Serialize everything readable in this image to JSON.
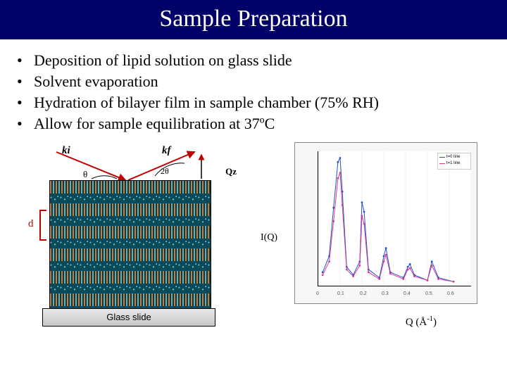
{
  "title": "Sample Preparation",
  "title_bg": "#010168",
  "title_color": "#ffffff",
  "bullets": [
    "Deposition of lipid solution on glass slide",
    "Solvent evaporation",
    "Hydration of bilayer film in sample chamber (75% RH)",
    "Allow for sample equilibration at 37ºC"
  ],
  "left_diagram": {
    "ki": "ki",
    "kf": "kf",
    "qz": "Qz",
    "theta": "θ",
    "twotheta": "2θ",
    "d_label": "d",
    "glass_label": "Glass slide",
    "layer_color_head": "#d97a24",
    "layer_color_tail": "#0b4a5a",
    "bracket_color": "#c00000",
    "arrow_color_in": "#c00000",
    "arrow_color_out": "#c00000",
    "n_bilayers": 6
  },
  "axis_labels": {
    "y": "I(Q)",
    "x_html": "Q (Å<sup>-1</sup>)"
  },
  "chart": {
    "type": "line",
    "background_color": "#f7f7f7",
    "plot_bg": "#ffffff",
    "grid_color": "#e0e0e0",
    "xlim": [
      0.0,
      0.7
    ],
    "ylim": [
      0,
      100
    ],
    "xticks": [
      0.0,
      0.1,
      0.2,
      0.3,
      0.4,
      0.5,
      0.6,
      0.7
    ],
    "series": [
      {
        "name": "t=0",
        "color": "#1f4fd6",
        "marker": "dot",
        "x": [
          0.02,
          0.05,
          0.07,
          0.09,
          0.1,
          0.11,
          0.13,
          0.16,
          0.19,
          0.2,
          0.21,
          0.23,
          0.28,
          0.3,
          0.31,
          0.33,
          0.39,
          0.41,
          0.42,
          0.44,
          0.5,
          0.52,
          0.55,
          0.62
        ],
        "y": [
          10,
          22,
          58,
          92,
          95,
          70,
          14,
          8,
          18,
          62,
          55,
          12,
          6,
          22,
          28,
          10,
          6,
          14,
          16,
          8,
          4,
          18,
          6,
          3
        ]
      },
      {
        "name": "t=1",
        "color": "#d63a8a",
        "marker": "dot",
        "x": [
          0.02,
          0.05,
          0.07,
          0.09,
          0.1,
          0.11,
          0.13,
          0.16,
          0.19,
          0.2,
          0.21,
          0.23,
          0.28,
          0.3,
          0.31,
          0.33,
          0.39,
          0.41,
          0.42,
          0.44,
          0.5,
          0.52,
          0.55,
          0.62
        ],
        "y": [
          8,
          18,
          48,
          80,
          84,
          60,
          12,
          7,
          15,
          52,
          46,
          10,
          5,
          18,
          23,
          9,
          5,
          12,
          13,
          7,
          4,
          15,
          5,
          3
        ]
      }
    ],
    "legend": {
      "items": [
        "t=0 line",
        "t=1 line"
      ]
    },
    "line_width": 1,
    "marker_size": 1.4
  }
}
